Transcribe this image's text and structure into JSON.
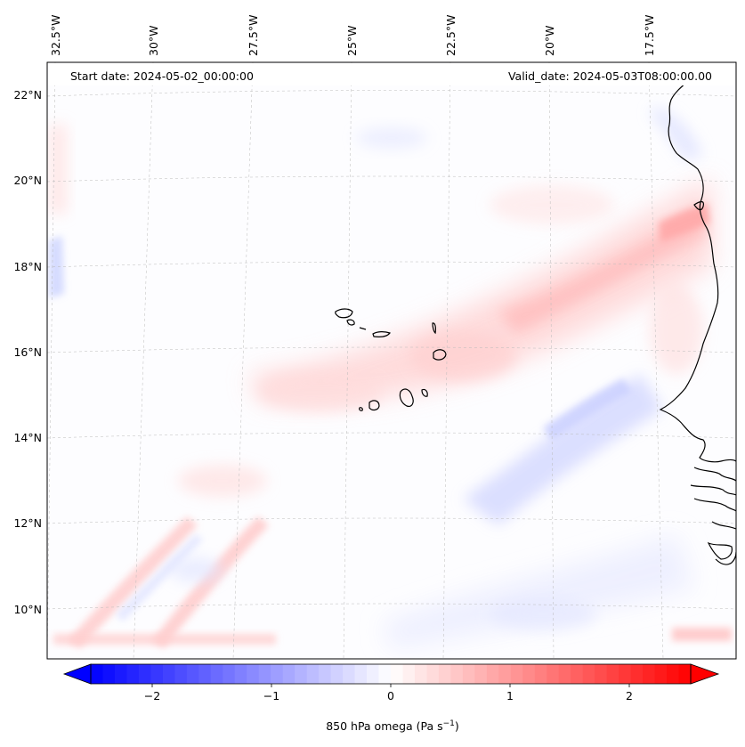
{
  "header": {
    "start_date": "Start date: 2024-05-02_00:00:00",
    "valid_date": "Valid_date: 2024-05-03T08:00:00.00"
  },
  "map": {
    "lon_labels": [
      "32.5°W",
      "30°W",
      "27.5°W",
      "25°W",
      "22.5°W",
      "20°W",
      "17.5°W"
    ],
    "lat_labels": [
      "22°N",
      "20°N",
      "18°N",
      "16°N",
      "14°N",
      "12°N",
      "10°N"
    ],
    "regions": [
      "Cape Verde Islands",
      "West African coast"
    ]
  },
  "colorbar": {
    "label_prefix": "850 hPa omega (Pa s",
    "label_exp": "−1",
    "label_suffix": ")",
    "ticks": [
      "−2",
      "−1",
      "0",
      "1",
      "2"
    ],
    "min": -2.6,
    "max": 2.6,
    "low_color": "#0000ff",
    "mid_color": "#ffffff",
    "high_color": "#ff0000"
  },
  "chart_data": {
    "type": "heatmap",
    "variable": "850 hPa omega",
    "units": "Pa s^-1",
    "colormap": "bwr",
    "vmin": -2.6,
    "vmax": 2.6,
    "x_ticks": [
      "32.5°W",
      "30°W",
      "27.5°W",
      "25°W",
      "22.5°W",
      "20°W",
      "17.5°W"
    ],
    "y_ticks": [
      "22°N",
      "20°N",
      "18°N",
      "16°N",
      "14°N",
      "12°N",
      "10°N"
    ],
    "features": [
      {
        "name": "positive band SW-NE toward coast",
        "value_approx": 0.8
      },
      {
        "name": "negative band near 20°W 14°N",
        "value_approx": -0.5
      },
      {
        "name": "max near coast 19°N",
        "value_approx": 1.0
      }
    ]
  }
}
